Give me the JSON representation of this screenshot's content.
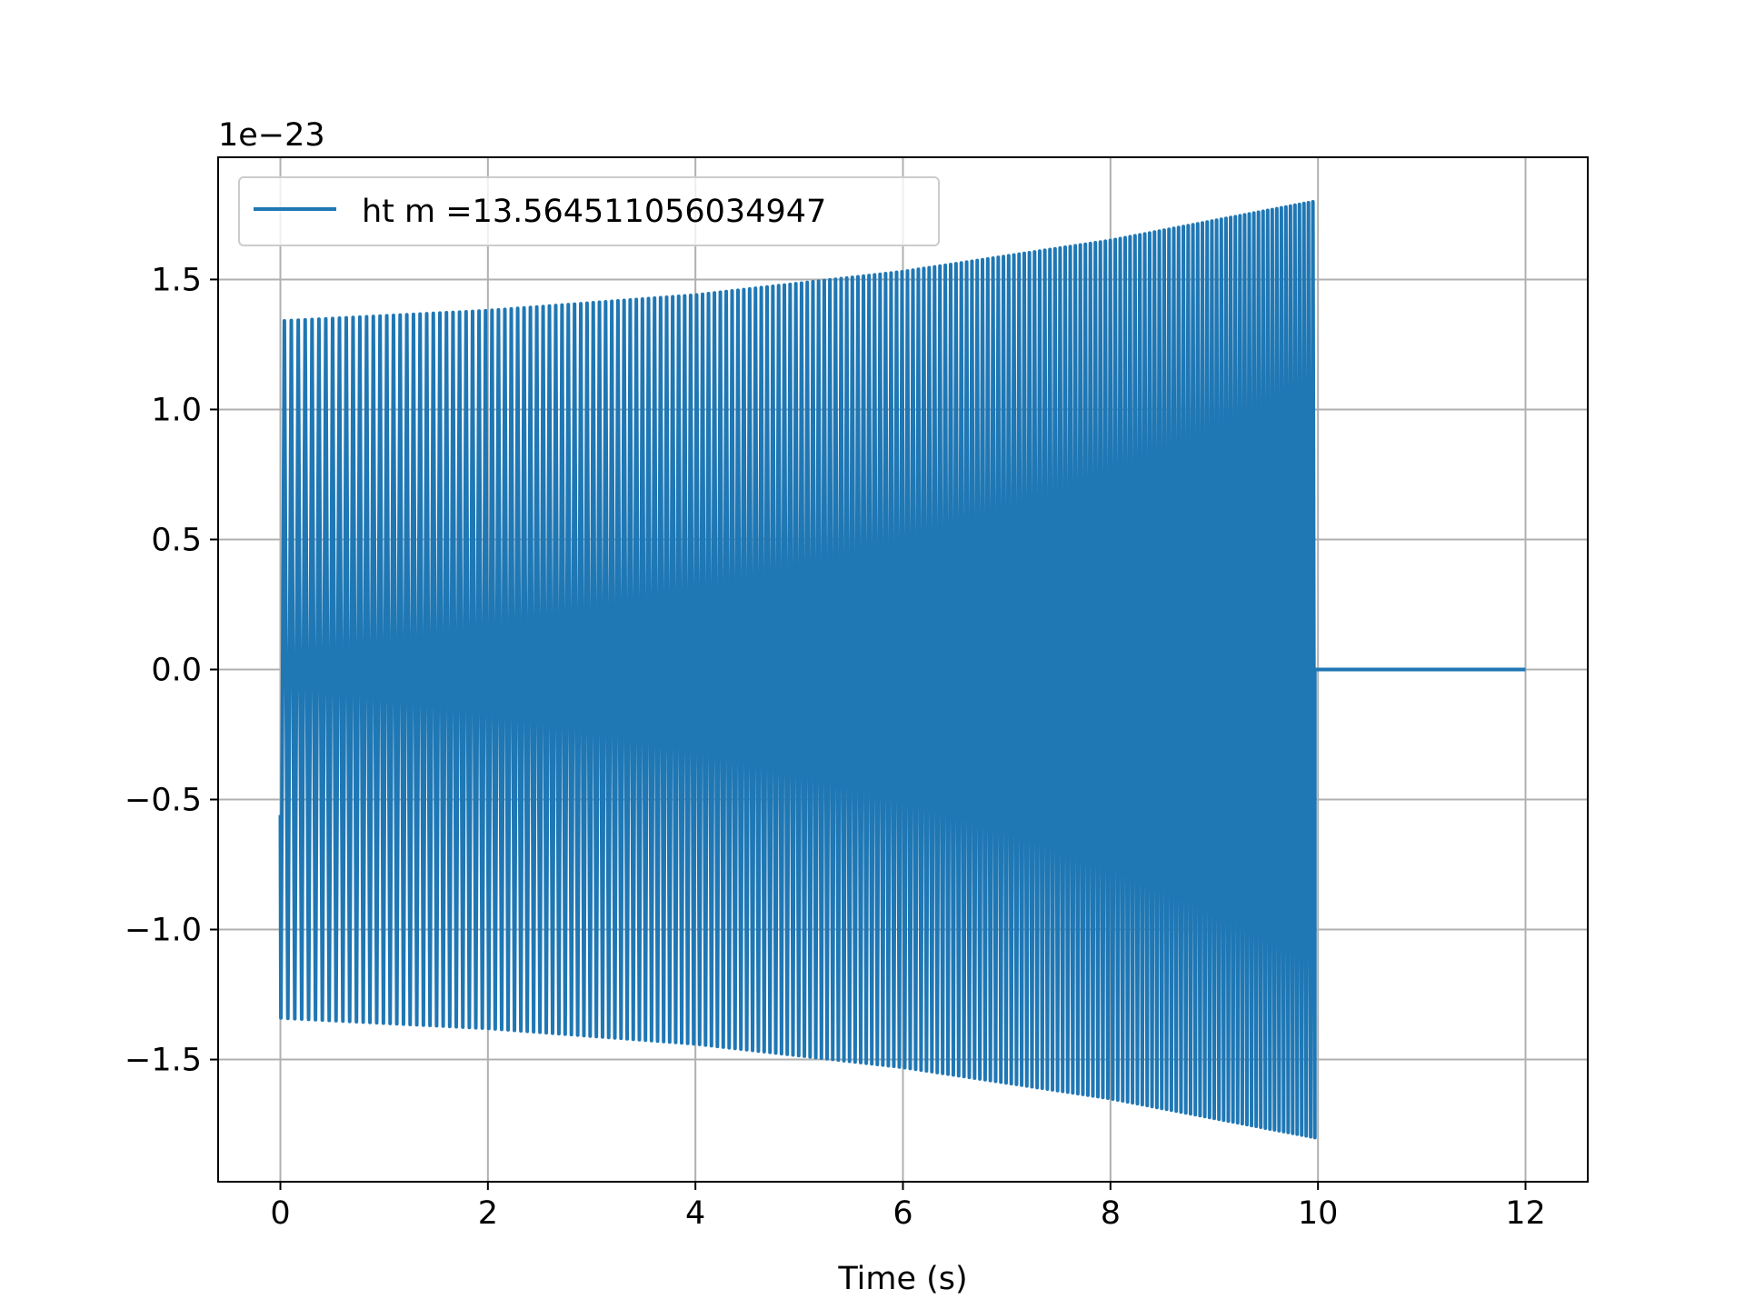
{
  "chart_data": {
    "type": "line",
    "title": "",
    "xlabel": "Time (s)",
    "ylabel": "",
    "offset_label": "1e−23",
    "xlim": [
      -0.6,
      12.6
    ],
    "ylim": [
      -1.97,
      1.97
    ],
    "x_ticks": [
      0,
      2,
      4,
      6,
      8,
      10,
      12
    ],
    "x_tick_labels": [
      "0",
      "2",
      "4",
      "6",
      "8",
      "10",
      "12"
    ],
    "y_ticks": [
      -1.5,
      -1.0,
      -0.5,
      0.0,
      0.5,
      1.0,
      1.5
    ],
    "y_tick_labels": [
      "−1.5",
      "−1.0",
      "−0.5",
      "0.0",
      "0.5",
      "1.0",
      "1.5"
    ],
    "grid": true,
    "legend_position": "upper-left",
    "series": [
      {
        "name": "ht m =13.564511056034947",
        "color": "#1f77b4",
        "style": "oscillating chirp",
        "signal": {
          "start_time": 0.0,
          "end_time": 9.97,
          "flat_until": 12.0,
          "start_value": -0.56,
          "envelope": [
            {
              "t": 0.0,
              "amp": 1.34
            },
            {
              "t": 2.0,
              "amp": 1.38
            },
            {
              "t": 4.0,
              "amp": 1.44
            },
            {
              "t": 6.0,
              "amp": 1.53
            },
            {
              "t": 8.0,
              "amp": 1.65
            },
            {
              "t": 9.97,
              "amp": 1.8
            }
          ],
          "cycle_spacing_start": 0.067,
          "cycle_spacing_end": 0.043
        }
      }
    ]
  }
}
